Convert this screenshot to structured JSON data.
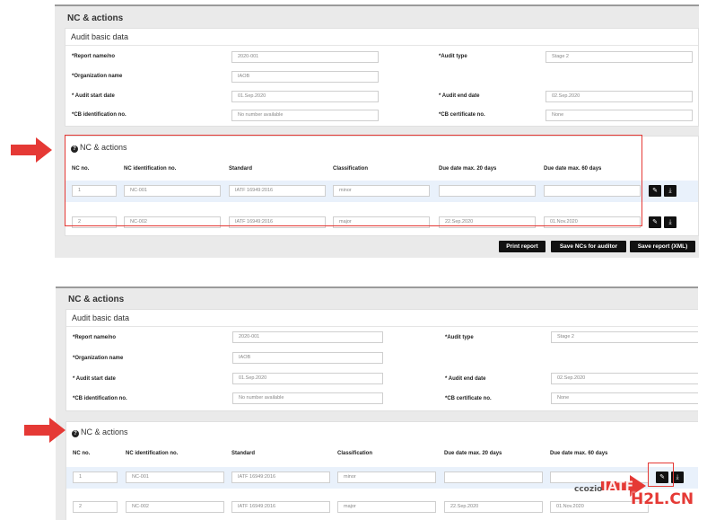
{
  "panel_title": "NC & actions",
  "basic": {
    "title": "Audit basic data",
    "labels": {
      "report_name": "*Report name/no",
      "audit_type": "*Audit type",
      "org_name": "*Organization name",
      "start": "* Audit start date",
      "end": "* Audit end date",
      "cb_id": "*CB identification no.",
      "cb_cert": "*CB certificate no."
    },
    "values": {
      "report_name": "2020-001",
      "audit_type": "Stage 2",
      "org_name": "IAOB",
      "start": "01.Sep.2020",
      "end": "02.Sep.2020",
      "cb_id": "No number available",
      "cb_cert": "None"
    }
  },
  "nc": {
    "title": "NC & actions",
    "help_icon": "question-circle-icon",
    "columns": [
      "NC no.",
      "NC identification no.",
      "Standard",
      "Classification",
      "Due date max. 20 days",
      "Due date max. 60 days"
    ],
    "rows": [
      {
        "no": "1",
        "id": "NC-001",
        "standard": "IATF 16949:2016",
        "classification": "minor",
        "due20": "",
        "due60": ""
      },
      {
        "no": "2",
        "id": "NC-002",
        "standard": "IATF 16949:2016",
        "classification": "major",
        "due20": "22.Sep.2020",
        "due60": "01.Nov.2020"
      }
    ],
    "edit_icon": "pencil-icon",
    "download_icon": "download-icon"
  },
  "buttons": {
    "print": "Print report",
    "save_ncs": "Save NCs for auditor",
    "save_xml": "Save report (XML)"
  },
  "watermark": {
    "text1": "IATF",
    "text2": "H2L.CN",
    "text3": "ccozio"
  },
  "colors": {
    "accent_red": "#e53935",
    "button_dark": "#111111",
    "row_highlight": "#e9f1fb"
  }
}
